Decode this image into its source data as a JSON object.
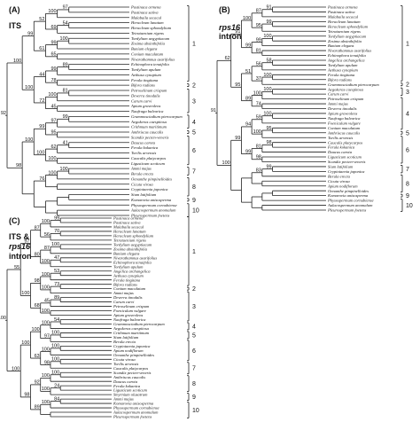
{
  "panels": [
    {
      "label": "(A)",
      "title_lines": [
        "ITS"
      ],
      "taxa": [
        "Pastinaca armena",
        "Pastinaca sativa",
        "Malabaila secacul",
        "Heracleum lanatum",
        "Heracleum sphondylium",
        "Tetrataenium rigens",
        "Tordylium aegyptiacum",
        "Zosima absinthifolia",
        "Bunium elegans",
        "Conium maculatum",
        "Nivarathamnus asarifolius",
        "Echinophora tenuifolia",
        "Tordylium apulum",
        "Aethusa cynapium",
        "Ferula tingitana",
        "Bifora radians",
        "Petroselinum crispum",
        "Deverra tinodalis",
        "Carum carvi",
        "Apium graveolens",
        "Naufraga balearica",
        "Grammosciadium pterocarpum",
        "Aegokeras caespitosa",
        "Crithmum maritimum",
        "Anthriscus caucalis",
        "Scandix pecten-veneris",
        "Daucus carota",
        "Ferula kokanica",
        "Torilis arvensis",
        "Caucalis platycarpos",
        "Ligusticum scoticum",
        "Ammi majus",
        "Berula erecta",
        "Oenanthe pimpinelloides",
        "Cicuta virosa",
        "Cryptotaenia japonica",
        "Sium latifolium",
        "Komarovia anisosperma",
        "Physospermum cornubiense",
        "Aulacospermum anomalum",
        "Pleurospermum foetens"
      ],
      "bootstrap": [
        "97",
        "100",
        "52",
        "54",
        "69",
        "99",
        "100",
        "99",
        "61",
        "65",
        "100",
        "89",
        "99",
        "44",
        "78",
        "100",
        "81",
        "100",
        "72",
        "45",
        "92",
        "99",
        "97",
        "99",
        "95",
        "100",
        "41",
        "62",
        "100",
        "100",
        "98",
        "100",
        "100",
        "76"
      ],
      "groups": [
        "1",
        "2",
        "3",
        "4",
        "5",
        "6",
        "7",
        "8",
        "9",
        "10"
      ]
    },
    {
      "label": "(B)",
      "title_lines": [
        "rps16",
        "intron"
      ],
      "taxa": [
        "Pastinaca armena",
        "Pastinaca sativa",
        "Malabaila secacul",
        "Heracleum lanatum",
        "Heracleum sphondylium",
        "Tetrataenium rigens",
        "Tordylium aegyptiacum",
        "Zosima absinthifolia",
        "Bunium elegans",
        "Nivarathamnus asarifolius",
        "Echinophora tenuifolia",
        "Angelica archangelica",
        "Tordylium apulum",
        "Aethusa cynapium",
        "Ferula tingitana",
        "Bifora radians",
        "Grammosciadium pterocarpum",
        "Aegokeras caespitosa",
        "Carum carvi",
        "Petroselinum crispum",
        "Ammi majus",
        "Deverra tinodalis",
        "Apium graveolens",
        "Naufraga balearica",
        "Foeniculum vulgare",
        "Conium maculatum",
        "Anthriscus caucalis",
        "Torilis arvensis",
        "Caucalis platycarpos",
        "Ferula kokanica",
        "Daucus carota",
        "Ligusticum scoticum",
        "Scandix pecten-veneris",
        "Sium latifolium",
        "Cryptotaenia japonica",
        "Berula erecta",
        "Cicuta virosa",
        "Apium nodiflorum",
        "Oenanthe pimpinelloides",
        "Komarovia anisosperma",
        "Physospermum cornubiense",
        "Aulacospermum anomalum",
        "Pleurospermum foetens"
      ],
      "bootstrap": [
        "91",
        "87",
        "100",
        "99",
        "95",
        "91",
        "100",
        "99",
        "99",
        "81",
        "62",
        "58",
        "56",
        "51",
        "100",
        "37",
        "95",
        "100",
        "100",
        "89",
        "74",
        "91",
        "100",
        "59",
        "94",
        "95",
        "100",
        "99",
        "98",
        "81",
        "99",
        "98",
        "100",
        "99",
        "83"
      ],
      "groups": [
        "1",
        "2",
        "3",
        "4",
        "5",
        "6",
        "7",
        "8",
        "9",
        "10"
      ]
    },
    {
      "label": "(C)",
      "title_lines": [
        "ITS &",
        "rps16",
        "intron"
      ],
      "taxa": [
        "Pastinaca armena",
        "Pastinaca sativa",
        "Malabaila secacul",
        "Heracleum lanatum",
        "Heracleum sphondylium",
        "Tetrataenium rigens",
        "Tordylium aegyptiacum",
        "Zosima absinthifolia",
        "Bunium elegans",
        "Nivarathamnus asarifolius",
        "Echinophora tenuifolia",
        "Tordylium apulum",
        "Angelica archangelica",
        "Aethusa cynapium",
        "Ferula tingitana",
        "Bifora radians",
        "Conium maculatum",
        "Ammi majus",
        "Deverra tinodalis",
        "Carum carvi",
        "Petroselinum crispum",
        "Foeniculum vulgare",
        "Apium graveolens",
        "Naufraga balearica",
        "Grammosciadium pterocarpum",
        "Aegokeras caespitosa",
        "Crithmum maritimum",
        "Sium latifolium",
        "Berula erecta",
        "Cryptotaenia japonica",
        "Apium nodiflorum",
        "Oenanthe pimpinelloides",
        "Cicuta virosa",
        "Torilis arvensis",
        "Caucalis platycarpos",
        "Scandix pecten-veneris",
        "Anthriscus caucalis",
        "Daucus carota",
        "Ferula kokanica",
        "Ligusticum scoticum",
        "Smyrnium olusatrum",
        "Ammi majus",
        "Komarovia anisosperma",
        "Physospermum cornubiense",
        "Aulacospermum anomalum",
        "Pleurospermum foetens"
      ],
      "bootstrap": [
        "99",
        "100",
        "87",
        "70",
        "56",
        "97",
        "100",
        "87",
        "80",
        "47",
        "100",
        "55",
        "53",
        "100",
        "98",
        "73",
        "100",
        "100",
        "89",
        "45",
        "68",
        "100",
        "100",
        "54",
        "100",
        "100",
        "100",
        "97",
        "100",
        "100",
        "100",
        "63",
        "100",
        "98",
        "100",
        "100",
        "100",
        "92",
        "24",
        "100",
        "98",
        "84",
        "100",
        "89"
      ],
      "groups": [
        "1",
        "2",
        "3",
        "4",
        "5",
        "6",
        "7",
        "8",
        "9",
        "10"
      ]
    }
  ]
}
